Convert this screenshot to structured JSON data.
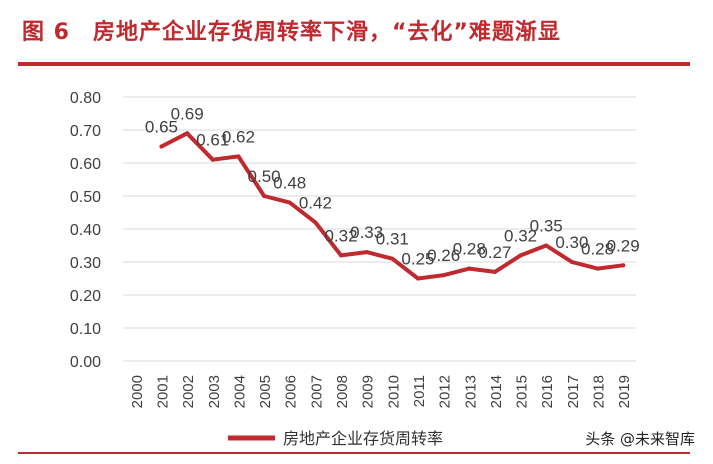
{
  "figure": {
    "title": "图 6　房地产企业存货周转率下滑，“去化”难题渐显",
    "watermark": "头条 @未来智库"
  },
  "colors": {
    "accent": "#c0292e",
    "series_line": "#c0292e",
    "grid": "#d9d9d9",
    "text": "#404040"
  },
  "chart_data": {
    "type": "line",
    "title": "",
    "xlabel": "",
    "ylabel": "",
    "ylim": [
      0,
      0.8
    ],
    "yticks": [
      "0.00",
      "0.10",
      "0.20",
      "0.30",
      "0.40",
      "0.50",
      "0.60",
      "0.70",
      "0.80"
    ],
    "categories": [
      "2000",
      "2001",
      "2002",
      "2003",
      "2004",
      "2005",
      "2006",
      "2007",
      "2008",
      "2009",
      "2010",
      "2011",
      "2012",
      "2013",
      "2014",
      "2015",
      "2016",
      "2017",
      "2018",
      "2019"
    ],
    "grid": true,
    "legend_position": "bottom",
    "series": [
      {
        "name": "房地产企业存货周转率",
        "values": [
          null,
          0.65,
          0.69,
          0.61,
          0.62,
          0.5,
          0.48,
          0.42,
          0.32,
          0.33,
          0.31,
          0.25,
          0.26,
          0.28,
          0.27,
          0.32,
          0.35,
          0.3,
          0.28,
          0.29
        ],
        "labels": [
          "",
          "0.65",
          "0.69",
          "0.61",
          "0.62",
          "0.50",
          "0.48",
          "0.42",
          "0.32",
          "0.33",
          "0.31",
          "0.25",
          "0.26",
          "0.28",
          "0.27",
          "0.32",
          "0.35",
          "0.30",
          "0.28",
          "0.29"
        ]
      }
    ]
  }
}
